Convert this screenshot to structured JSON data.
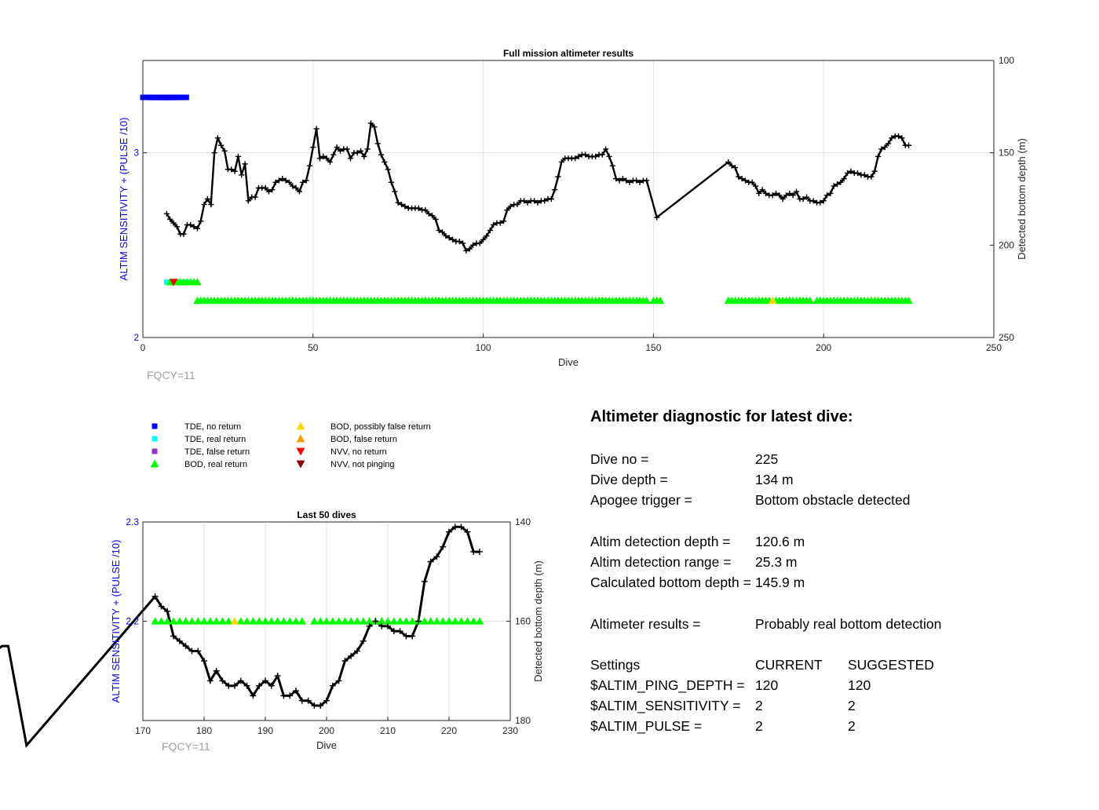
{
  "colors": {
    "tde_no_return": "#0000ff",
    "tde_real_return": "#00ffff",
    "tde_false_return": "#9933cc",
    "bod_real_return": "#00ff00",
    "bod_possibly_false": "#ffd700",
    "bod_false_return": "#ff9900",
    "nvv_no_return": "#ff0000",
    "nvv_not_pinging": "#8b0000",
    "left_axis": "#0000ff",
    "line": "#000000",
    "grid": "#e0e0e0",
    "annotation": "#a0a0a0"
  },
  "chart_data": [
    {
      "type": "line",
      "title": "Full mission altimeter results",
      "xlabel": "Dive",
      "ylabel_left": "ALTIM SENSITIVITY + (PULSE /10)",
      "ylabel_right": "Detected bottom depth (m)",
      "xlim": [
        0,
        250
      ],
      "ylim_left": [
        2,
        3.5
      ],
      "ylim_right": [
        100,
        250
      ],
      "right_axis_reversed": true,
      "xticks": [
        0,
        50,
        100,
        150,
        200,
        250
      ],
      "yticks_left": [
        2,
        3
      ],
      "yticks_right": [
        100,
        150,
        200,
        250
      ],
      "grid": true,
      "annotation": "FQCY=11",
      "series": [
        {
          "name": "Detected bottom depth",
          "axis": "right",
          "points": [
            [
              7,
              183
            ],
            [
              8,
              186
            ],
            [
              9,
              188
            ],
            [
              10,
              190
            ],
            [
              11,
              194
            ],
            [
              12,
              194
            ],
            [
              13,
              189
            ],
            [
              14,
              189
            ],
            [
              15,
              190
            ],
            [
              16,
              191
            ],
            [
              17,
              187
            ],
            [
              18,
              178
            ],
            [
              19,
              175
            ],
            [
              20,
              178
            ],
            [
              21,
              150
            ],
            [
              22,
              142
            ],
            [
              23,
              146
            ],
            [
              24,
              149
            ],
            [
              25,
              159
            ],
            [
              26,
              159
            ],
            [
              27,
              160
            ],
            [
              28,
              152
            ],
            [
              29,
              162
            ],
            [
              30,
              156
            ],
            [
              31,
              176
            ],
            [
              32,
              174
            ],
            [
              33,
              174
            ],
            [
              34,
              169
            ],
            [
              35,
              169
            ],
            [
              36,
              169
            ],
            [
              37,
              171
            ],
            [
              38,
              170
            ],
            [
              39,
              166
            ],
            [
              40,
              165
            ],
            [
              41,
              164
            ],
            [
              42,
              165
            ],
            [
              43,
              166
            ],
            [
              44,
              168
            ],
            [
              45,
              169
            ],
            [
              46,
              171
            ],
            [
              47,
              166
            ],
            [
              48,
              165
            ],
            [
              49,
              157
            ],
            [
              50,
              147
            ],
            [
              51,
              137
            ],
            [
              52,
              153
            ],
            [
              53,
              152
            ],
            [
              54,
              153
            ],
            [
              55,
              155
            ],
            [
              56,
              151
            ],
            [
              57,
              147
            ],
            [
              58,
              149
            ],
            [
              59,
              148
            ],
            [
              60,
              148
            ],
            [
              61,
              153
            ],
            [
              62,
              150
            ],
            [
              63,
              150
            ],
            [
              64,
              149
            ],
            [
              65,
              152
            ],
            [
              66,
              148
            ],
            [
              67,
              134
            ],
            [
              68,
              136
            ],
            [
              69,
              145
            ],
            [
              70,
              151
            ],
            [
              71,
              155
            ],
            [
              72,
              159
            ],
            [
              73,
              166
            ],
            [
              74,
              171
            ],
            [
              75,
              177
            ],
            [
              76,
              178
            ],
            [
              77,
              179
            ],
            [
              78,
              180
            ],
            [
              79,
              180
            ],
            [
              80,
              180
            ],
            [
              81,
              180
            ],
            [
              82,
              181
            ],
            [
              83,
              181
            ],
            [
              84,
              183
            ],
            [
              85,
              184
            ],
            [
              86,
              186
            ],
            [
              87,
              192
            ],
            [
              88,
              193
            ],
            [
              89,
              195
            ],
            [
              90,
              196
            ],
            [
              91,
              197
            ],
            [
              92,
              198
            ],
            [
              93,
              198
            ],
            [
              94,
              199
            ],
            [
              95,
              203
            ],
            [
              96,
              202
            ],
            [
              97,
              200
            ],
            [
              98,
              199
            ],
            [
              99,
              199
            ],
            [
              100,
              197
            ],
            [
              101,
              195
            ],
            [
              102,
              192
            ],
            [
              103,
              189
            ],
            [
              104,
              188
            ],
            [
              105,
              188
            ],
            [
              106,
              187
            ],
            [
              107,
              181
            ],
            [
              108,
              179
            ],
            [
              109,
              178
            ],
            [
              110,
              178
            ],
            [
              111,
              176
            ],
            [
              112,
              176
            ],
            [
              113,
              177
            ],
            [
              114,
              176
            ],
            [
              115,
              176
            ],
            [
              116,
              177
            ],
            [
              117,
              176
            ],
            [
              118,
              176
            ],
            [
              119,
              175
            ],
            [
              120,
              175
            ],
            [
              121,
              170
            ],
            [
              122,
              163
            ],
            [
              123,
              155
            ],
            [
              124,
              153
            ],
            [
              125,
              153
            ],
            [
              126,
              153
            ],
            [
              127,
              153
            ],
            [
              128,
              152
            ],
            [
              129,
              151
            ],
            [
              130,
              151
            ],
            [
              131,
              152
            ],
            [
              132,
              152
            ],
            [
              133,
              152
            ],
            [
              134,
              151
            ],
            [
              135,
              151
            ],
            [
              136,
              148
            ],
            [
              137,
              152
            ],
            [
              138,
              157
            ],
            [
              139,
              164
            ],
            [
              140,
              165
            ],
            [
              141,
              164
            ],
            [
              142,
              165
            ],
            [
              143,
              166
            ],
            [
              144,
              165
            ],
            [
              145,
              165
            ],
            [
              146,
              166
            ],
            [
              147,
              165
            ],
            [
              148,
              165
            ],
            [
              151,
              185
            ],
            [
              172,
              155
            ],
            [
              173,
              157
            ],
            [
              174,
              158
            ],
            [
              175,
              163
            ],
            [
              176,
              164
            ],
            [
              177,
              165
            ],
            [
              178,
              166
            ],
            [
              179,
              166
            ],
            [
              180,
              168
            ],
            [
              181,
              172
            ],
            [
              182,
              170
            ],
            [
              183,
              172
            ],
            [
              184,
              173
            ],
            [
              185,
              173
            ],
            [
              186,
              172
            ],
            [
              187,
              173
            ],
            [
              188,
              175
            ],
            [
              189,
              173
            ],
            [
              190,
              172
            ],
            [
              191,
              173
            ],
            [
              192,
              171
            ],
            [
              193,
              175
            ],
            [
              194,
              175
            ],
            [
              195,
              174
            ],
            [
              196,
              176
            ],
            [
              197,
              176
            ],
            [
              198,
              177
            ],
            [
              199,
              177
            ],
            [
              200,
              176
            ],
            [
              201,
              173
            ],
            [
              202,
              172
            ],
            [
              203,
              168
            ],
            [
              204,
              167
            ],
            [
              205,
              166
            ],
            [
              206,
              164
            ],
            [
              207,
              161
            ],
            [
              208,
              160
            ],
            [
              209,
              161
            ],
            [
              210,
              161
            ],
            [
              211,
              162
            ],
            [
              212,
              162
            ],
            [
              213,
              163
            ],
            [
              214,
              163
            ],
            [
              215,
              160
            ],
            [
              216,
              152
            ],
            [
              217,
              148
            ],
            [
              218,
              147
            ],
            [
              219,
              145
            ],
            [
              220,
              142
            ],
            [
              221,
              141
            ],
            [
              222,
              141
            ],
            [
              223,
              142
            ],
            [
              224,
              146
            ],
            [
              225,
              146
            ]
          ]
        },
        {
          "name": "TDE, no return",
          "marker": "square",
          "color_key": "tde_no_return",
          "axis": "left",
          "x": [
            0,
            1,
            2,
            3,
            4,
            5,
            6,
            7
          ],
          "y": 3.3
        },
        {
          "name": "TDE, real return",
          "marker": "square",
          "color_key": "tde_real_return",
          "axis": "left",
          "x": [
            7
          ],
          "y": 2.3
        },
        {
          "name": "BOD, real return",
          "marker": "triangle-up",
          "color_key": "bod_real_return",
          "axis": "left",
          "segments": [
            {
              "y": 2.3,
              "x_from": 8,
              "x_to": 16
            },
            {
              "y": 2.2,
              "x_from": 16,
              "x_to": 148
            },
            {
              "y": 2.2,
              "x_from": 150,
              "x_to": 152
            },
            {
              "y": 2.2,
              "x_from": 172,
              "x_to": 196
            },
            {
              "y": 2.2,
              "x_from": 198,
              "x_to": 225
            }
          ],
          "exclude": [
            185
          ]
        },
        {
          "name": "BOD, possibly false return",
          "marker": "triangle-up",
          "color_key": "bod_possibly_false",
          "axis": "left",
          "x": [
            185
          ],
          "y": 2.2
        },
        {
          "name": "NVV, no return",
          "marker": "triangle-down",
          "color_key": "nvv_no_return",
          "axis": "left",
          "x": [
            9
          ],
          "y": 2.3
        }
      ]
    },
    {
      "type": "line",
      "title": "Last 50 dives",
      "xlabel": "Dive",
      "ylabel_left": "ALTIM SENSITIVITY + (PULSE /10)",
      "ylabel_right": "Detected bottom depth (m)",
      "xlim": [
        170,
        230
      ],
      "ylim_left": [
        2.1,
        2.3
      ],
      "ylim_right": [
        140,
        180
      ],
      "right_axis_reversed": true,
      "xticks": [
        170,
        180,
        190,
        200,
        210,
        220,
        230
      ],
      "yticks_left": [
        2.2,
        2.3
      ],
      "yticks_right": [
        140,
        160,
        180
      ],
      "grid": true,
      "annotation": "FQCY=11"
    }
  ],
  "legend": {
    "items": [
      {
        "label": "TDE, no return",
        "marker": "square",
        "color_key": "tde_no_return"
      },
      {
        "label": "TDE, real return",
        "marker": "square",
        "color_key": "tde_real_return"
      },
      {
        "label": "TDE, false return",
        "marker": "square",
        "color_key": "tde_false_return"
      },
      {
        "label": "BOD, real return",
        "marker": "triangle-up",
        "color_key": "bod_real_return"
      },
      {
        "label": "BOD, possibly false return",
        "marker": "triangle-up",
        "color_key": "bod_possibly_false"
      },
      {
        "label": "BOD, false return",
        "marker": "triangle-up",
        "color_key": "bod_false_return"
      },
      {
        "label": "NVV, no return",
        "marker": "triangle-down",
        "color_key": "nvv_no_return"
      },
      {
        "label": "NVV, not pinging",
        "marker": "triangle-down",
        "color_key": "nvv_not_pinging"
      }
    ]
  },
  "diagnostic": {
    "title": "Altimeter diagnostic for latest dive:",
    "dive_no_label": "Dive no =",
    "dive_no_value": "225",
    "dive_depth_label": "Dive depth =",
    "dive_depth_value": "134 m",
    "apogee_label": "Apogee trigger =",
    "apogee_value": "Bottom obstacle detected",
    "altim_depth_label": "Altim detection depth =",
    "altim_depth_value": "120.6 m",
    "altim_range_label": "Altim detection range =",
    "altim_range_value": "25.3 m",
    "calc_depth_label": "Calculated bottom depth =",
    "calc_depth_value": "145.9 m",
    "results_label": "Altimeter results =",
    "results_value": "Probably real bottom detection",
    "settings_label": "Settings",
    "current_label": "CURRENT",
    "suggested_label": "SUGGESTED",
    "settings": [
      {
        "name": "$ALTIM_PING_DEPTH =",
        "current": "120",
        "suggested": "120"
      },
      {
        "name": "$ALTIM_SENSITIVITY =",
        "current": "2",
        "suggested": "2"
      },
      {
        "name": "$ALTIM_PULSE =",
        "current": "2",
        "suggested": "2"
      }
    ]
  }
}
